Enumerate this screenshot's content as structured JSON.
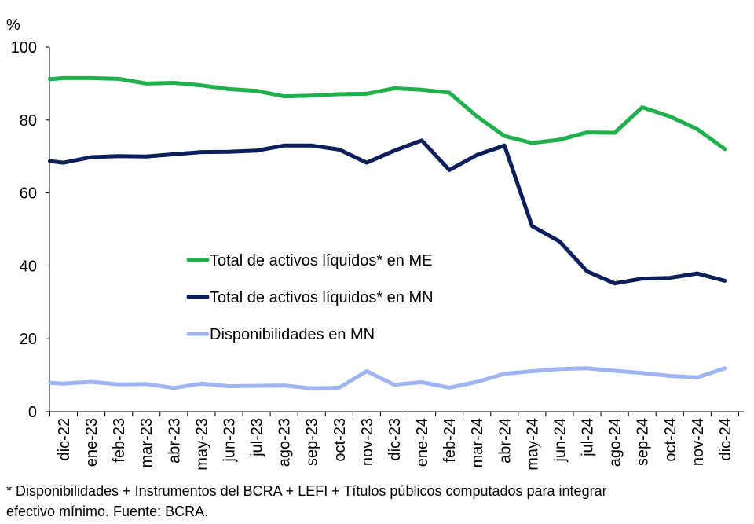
{
  "chart_data": {
    "type": "line",
    "y_unit": "%",
    "ylim": [
      0,
      100
    ],
    "y_ticks": [
      0,
      20,
      40,
      60,
      80,
      100
    ],
    "grid": false,
    "legend_placement": "center-left",
    "x": [
      {
        "label": "dic-22",
        "pos": 0
      },
      {
        "label": "ene-23",
        "pos": 1
      },
      {
        "label": "feb-23",
        "pos": 2
      },
      {
        "label": "mar-23",
        "pos": 3
      },
      {
        "label": "abr-23",
        "pos": 4
      },
      {
        "label": "may-23",
        "pos": 5
      },
      {
        "label": "jun-23",
        "pos": 6
      },
      {
        "label": "jul-23",
        "pos": 7
      },
      {
        "label": "ago-23",
        "pos": 8
      },
      {
        "label": "sep-23",
        "pos": 9
      },
      {
        "label": "oct-23",
        "pos": 10
      },
      {
        "label": "nov-23",
        "pos": 11
      },
      {
        "label": "dic-23",
        "pos": 12
      },
      {
        "label": "ene-24",
        "pos": 13
      },
      {
        "label": "feb-24",
        "pos": 14
      },
      {
        "label": "mar-24",
        "pos": 15
      },
      {
        "label": "abr-24",
        "pos": 16
      },
      {
        "label": "may-24",
        "pos": 17
      },
      {
        "label": "jun-24",
        "pos": 18
      },
      {
        "label": "jul-24",
        "pos": 19
      },
      {
        "label": "ago-24",
        "pos": 20
      },
      {
        "label": "sep-24",
        "pos": 21
      },
      {
        "label": "oct-24",
        "pos": 22
      },
      {
        "label": "nov-24",
        "pos": 23
      },
      {
        "label": "dic-24",
        "pos": 24
      }
    ],
    "series": [
      {
        "name": "Total de activos líquidos* en ME",
        "color": "#1fb04b",
        "points": [
          [
            -0.5,
            91.2
          ],
          [
            0,
            91.5
          ],
          [
            1,
            91.5
          ],
          [
            2,
            91.3
          ],
          [
            3,
            90.0
          ],
          [
            4,
            90.2
          ],
          [
            5,
            89.5
          ],
          [
            6,
            88.5
          ],
          [
            7,
            88.0
          ],
          [
            8,
            86.5
          ],
          [
            9,
            86.7
          ],
          [
            10,
            87.1
          ],
          [
            11,
            87.2
          ],
          [
            12,
            88.7
          ],
          [
            13,
            88.3
          ],
          [
            14,
            87.5
          ],
          [
            15,
            81.0
          ],
          [
            16,
            75.6
          ],
          [
            17,
            73.7
          ],
          [
            18,
            74.6
          ],
          [
            19,
            76.6
          ],
          [
            20,
            76.5
          ],
          [
            21,
            83.5
          ],
          [
            22,
            81.0
          ],
          [
            23,
            77.5
          ],
          [
            24,
            72.0
          ]
        ]
      },
      {
        "name": "Total de activos líquidos* en MN",
        "color": "#0b1f5c",
        "points": [
          [
            -0.5,
            68.7
          ],
          [
            0,
            68.3
          ],
          [
            1,
            69.8
          ],
          [
            2,
            70.1
          ],
          [
            3,
            70.0
          ],
          [
            4,
            70.6
          ],
          [
            5,
            71.2
          ],
          [
            6,
            71.3
          ],
          [
            7,
            71.6
          ],
          [
            8,
            73.0
          ],
          [
            9,
            73.0
          ],
          [
            10,
            71.9
          ],
          [
            11,
            68.3
          ],
          [
            12,
            71.6
          ],
          [
            13,
            74.4
          ],
          [
            14,
            66.3
          ],
          [
            15,
            70.4
          ],
          [
            16,
            73.0
          ],
          [
            17,
            50.9
          ],
          [
            18,
            46.7
          ],
          [
            19,
            38.5
          ],
          [
            20,
            35.2
          ],
          [
            21,
            36.5
          ],
          [
            22,
            36.7
          ],
          [
            23,
            37.9
          ],
          [
            24,
            35.9
          ]
        ]
      },
      {
        "name": "Disponibilidades en MN",
        "color": "#9fb4f2",
        "points": [
          [
            -0.5,
            7.9
          ],
          [
            0,
            7.7
          ],
          [
            1,
            8.2
          ],
          [
            2,
            7.5
          ],
          [
            3,
            7.6
          ],
          [
            4,
            6.5
          ],
          [
            5,
            7.7
          ],
          [
            6,
            7.0
          ],
          [
            7,
            7.1
          ],
          [
            8,
            7.2
          ],
          [
            9,
            6.4
          ],
          [
            10,
            6.6
          ],
          [
            11,
            11.1
          ],
          [
            12,
            7.4
          ],
          [
            13,
            8.1
          ],
          [
            14,
            6.6
          ],
          [
            15,
            8.2
          ],
          [
            16,
            10.4
          ],
          [
            17,
            11.1
          ],
          [
            18,
            11.7
          ],
          [
            19,
            11.9
          ],
          [
            20,
            11.2
          ],
          [
            21,
            10.6
          ],
          [
            22,
            9.8
          ],
          [
            23,
            9.4
          ],
          [
            24,
            11.9
          ]
        ]
      }
    ]
  },
  "footnote_line1": "* Disponibilidades + Instrumentos del BCRA + LEFI + Títulos públicos computados para integrar",
  "footnote_line2": "efectivo mínimo. Fuente: BCRA."
}
